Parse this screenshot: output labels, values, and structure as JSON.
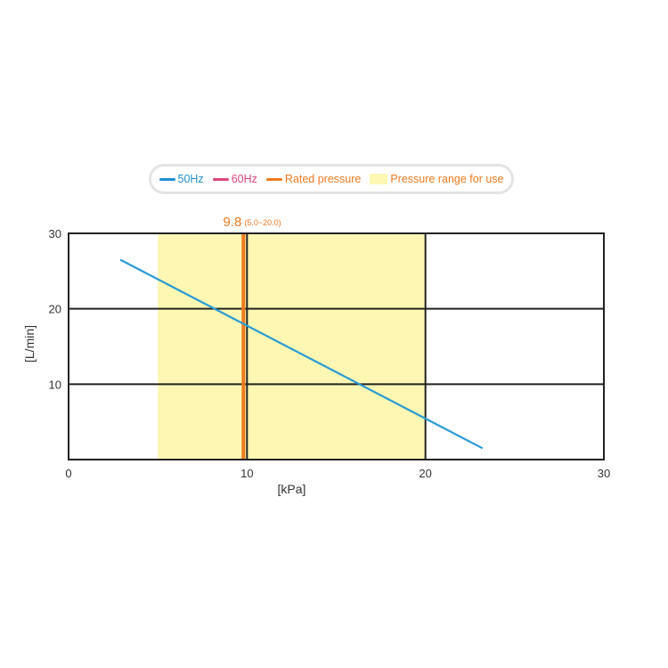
{
  "chart_data": {
    "type": "line",
    "title": "",
    "xlabel": "[kPa]",
    "ylabel": "[L/min]",
    "xlim": [
      0,
      30
    ],
    "ylim": [
      0,
      30
    ],
    "x_ticks": [
      "0",
      "10",
      "20",
      "30"
    ],
    "y_ticks": [
      "10",
      "20",
      "30"
    ],
    "grid": true,
    "legend_position": "top-center",
    "legend": [
      {
        "label": "50Hz",
        "kind": "line",
        "color": "#2a9bd5"
      },
      {
        "label": "60Hz",
        "kind": "line",
        "color": "#e0457b"
      },
      {
        "label": "Rated pressure",
        "kind": "line",
        "color": "#f07a20"
      },
      {
        "label": "Pressure range for use",
        "kind": "band",
        "color": "#fdf7b3"
      }
    ],
    "series": [
      {
        "name": "50Hz",
        "color": "#2a9bd5",
        "x": [
          2.9,
          23.2
        ],
        "y": [
          26.5,
          1.5
        ]
      }
    ],
    "rated_pressure": {
      "value": 9.8,
      "color": "#f07a20",
      "label": "9.8",
      "range_label": "(5.0~20.0)"
    },
    "pressure_range": {
      "min": 5.0,
      "max": 20.0,
      "color": "#fdf7b3"
    }
  }
}
